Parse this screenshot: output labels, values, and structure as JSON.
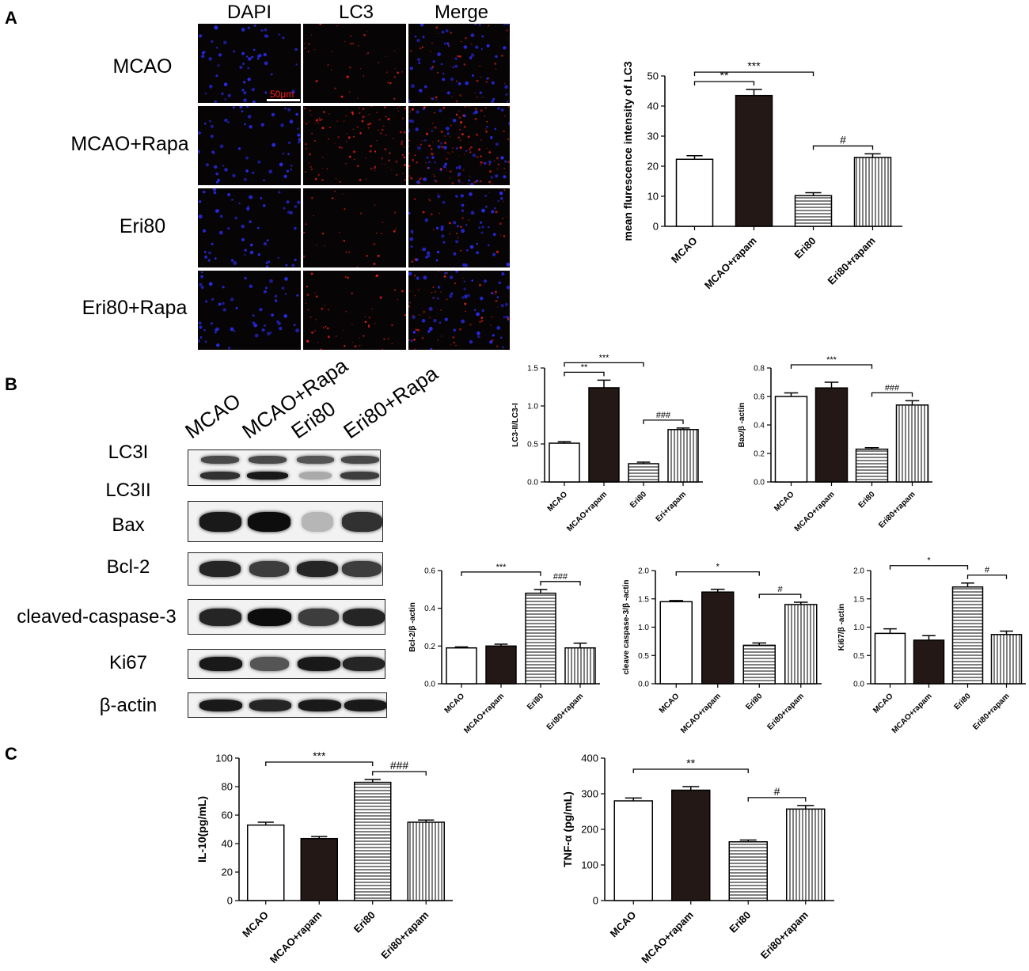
{
  "panels": {
    "a": "A",
    "b": "B",
    "c": "C"
  },
  "if_grid": {
    "columns": [
      "DAPI",
      "LC3",
      "Merge"
    ],
    "rows": [
      "MCAO",
      "MCAO+Rapa",
      "Eri80",
      "Eri80+Rapa"
    ],
    "scale_bar": "50μm",
    "intensity": {
      "dapi": [
        1.0,
        1.0,
        1.0,
        1.0
      ],
      "lc3": [
        0.35,
        1.0,
        0.25,
        0.45
      ]
    }
  },
  "western_blot": {
    "lanes": [
      "MCAO",
      "MCAO+Rapa",
      "Eri80",
      "Eri80+Rapa"
    ],
    "bands": [
      {
        "label": "LC3I",
        "intensity": [
          0.75,
          0.75,
          0.7,
          0.75
        ]
      },
      {
        "label": "LC3II",
        "intensity": [
          0.85,
          0.95,
          0.35,
          0.8
        ]
      },
      {
        "label": "Bax",
        "intensity": [
          0.95,
          1.0,
          0.3,
          0.85
        ]
      },
      {
        "label": "Bcl-2",
        "intensity": [
          0.9,
          0.8,
          0.9,
          0.8
        ]
      },
      {
        "label": "cleaved-caspase-3",
        "intensity": [
          0.9,
          1.0,
          0.8,
          0.9
        ]
      },
      {
        "label": "Ki67",
        "intensity": [
          0.95,
          0.7,
          0.95,
          0.9
        ]
      },
      {
        "label": "β-actin",
        "intensity": [
          0.95,
          0.9,
          0.95,
          0.95
        ]
      }
    ]
  },
  "colors": {
    "bar_fill_dark": "#231815",
    "bar_stroke": "#000000",
    "lc3_red": "#e8201c",
    "dapi_blue": "#2a2ae8"
  },
  "chart_data": [
    {
      "id": "lc3-intensity",
      "type": "bar",
      "categories": [
        "MCAO",
        "MCAO+rapam",
        "Eri80",
        "Eri80+rapam"
      ],
      "values": [
        22.3,
        43.5,
        10.2,
        22.9
      ],
      "errors": [
        1.2,
        2.0,
        1.0,
        1.2
      ],
      "patterns": [
        "open",
        "solid",
        "hlines",
        "vlines"
      ],
      "ylabel": "mean flurescence intensity of LC3",
      "ylim": [
        0,
        50
      ],
      "yticks": [
        0,
        10,
        20,
        30,
        40,
        50
      ],
      "significance": [
        {
          "from": 0,
          "to": 1,
          "label": "**"
        },
        {
          "from": 0,
          "to": 2,
          "label": "***"
        },
        {
          "from": 2,
          "to": 3,
          "label": "#"
        }
      ]
    },
    {
      "id": "lc3-ratio",
      "type": "bar",
      "categories": [
        "MCAO",
        "MCAO+rapam",
        "Eri80",
        "Eri+rapam"
      ],
      "values": [
        0.51,
        1.24,
        0.24,
        0.69
      ],
      "errors": [
        0.02,
        0.1,
        0.02,
        0.02
      ],
      "patterns": [
        "open",
        "solid",
        "hlines",
        "vlines"
      ],
      "ylabel": "LC3-II/LC3-I",
      "ylim": [
        0,
        1.5
      ],
      "yticks": [
        "0.0",
        "0.5",
        "1.0",
        "1.5"
      ],
      "significance": [
        {
          "from": 0,
          "to": 1,
          "label": "**"
        },
        {
          "from": 0,
          "to": 2,
          "label": "***"
        },
        {
          "from": 2,
          "to": 3,
          "label": "###"
        }
      ]
    },
    {
      "id": "bax",
      "type": "bar",
      "categories": [
        "MCAO",
        "MCAO+rapam",
        "Eri80",
        "Eri80+rapam"
      ],
      "values": [
        0.6,
        0.66,
        0.23,
        0.54
      ],
      "errors": [
        0.025,
        0.04,
        0.01,
        0.03
      ],
      "patterns": [
        "open",
        "solid",
        "hlines",
        "vlines"
      ],
      "ylabel": "Bax/β -actin",
      "ylim": [
        0,
        0.8
      ],
      "yticks": [
        "0.0",
        "0.2",
        "0.4",
        "0.6",
        "0.8"
      ],
      "significance": [
        {
          "from": 0,
          "to": 2,
          "label": "***"
        },
        {
          "from": 2,
          "to": 3,
          "label": "###"
        }
      ]
    },
    {
      "id": "bcl2",
      "type": "bar",
      "categories": [
        "MCAO",
        "MCAO+rapam",
        "Eri80",
        "Eri80+rapam"
      ],
      "values": [
        0.19,
        0.2,
        0.48,
        0.19
      ],
      "errors": [
        0.005,
        0.01,
        0.02,
        0.025
      ],
      "patterns": [
        "open",
        "solid",
        "hlines",
        "vlines"
      ],
      "ylabel": "Bcl-2/β -actin",
      "ylim": [
        0,
        0.6
      ],
      "yticks": [
        "0.0",
        "0.2",
        "0.4",
        "0.6"
      ],
      "significance": [
        {
          "from": 0,
          "to": 2,
          "label": "***"
        },
        {
          "from": 2,
          "to": 3,
          "label": "###"
        }
      ]
    },
    {
      "id": "caspase3",
      "type": "bar",
      "categories": [
        "MCAO",
        "MCAO+rapam",
        "Eri80",
        "Eri80+rapam"
      ],
      "values": [
        1.45,
        1.62,
        0.68,
        1.4
      ],
      "errors": [
        0.02,
        0.05,
        0.04,
        0.04
      ],
      "patterns": [
        "open",
        "solid",
        "hlines",
        "vlines"
      ],
      "ylabel": "cleave caspase-3/β -actin",
      "ylim": [
        0,
        2.0
      ],
      "yticks": [
        "0.0",
        "0.5",
        "1.0",
        "1.5",
        "2.0"
      ],
      "significance": [
        {
          "from": 0,
          "to": 2,
          "label": "*"
        },
        {
          "from": 2,
          "to": 3,
          "label": "#"
        }
      ]
    },
    {
      "id": "ki67",
      "type": "bar",
      "categories": [
        "MCAO",
        "MCAO+rapam",
        "Eri80",
        "Eri80+rapam"
      ],
      "values": [
        0.89,
        0.77,
        1.71,
        0.87
      ],
      "errors": [
        0.08,
        0.08,
        0.07,
        0.06
      ],
      "patterns": [
        "open",
        "solid",
        "hlines",
        "vlines"
      ],
      "ylabel": "Ki67/β -actin",
      "ylim": [
        0,
        2.0
      ],
      "yticks": [
        "0.0",
        "0.5",
        "1.0",
        "1.5",
        "2.0"
      ],
      "significance": [
        {
          "from": 0,
          "to": 2,
          "label": "*"
        },
        {
          "from": 2,
          "to": 3,
          "label": "#"
        }
      ]
    },
    {
      "id": "il10",
      "type": "bar",
      "categories": [
        "MCAO",
        "MCAO+rapam",
        "Eri80",
        "Eri80+rapam"
      ],
      "values": [
        53,
        43.5,
        83,
        55
      ],
      "errors": [
        2,
        1.5,
        2,
        1.5
      ],
      "patterns": [
        "open",
        "solid",
        "hlines",
        "vlines"
      ],
      "ylabel": "IL-10(pg/mL)",
      "ylim": [
        0,
        100
      ],
      "yticks": [
        0,
        20,
        40,
        60,
        80,
        100
      ],
      "significance": [
        {
          "from": 0,
          "to": 2,
          "label": "***"
        },
        {
          "from": 2,
          "to": 3,
          "label": "###"
        }
      ]
    },
    {
      "id": "tnf",
      "type": "bar",
      "categories": [
        "MCAO",
        "MCAO+rapam",
        "Eri80",
        "Eri80+rapam"
      ],
      "values": [
        280,
        310,
        165,
        257
      ],
      "errors": [
        8,
        10,
        5,
        10
      ],
      "patterns": [
        "open",
        "solid",
        "hlines",
        "vlines"
      ],
      "ylabel": "TNF-α (pg/mL)",
      "ylim": [
        0,
        400
      ],
      "yticks": [
        0,
        100,
        200,
        300,
        400
      ],
      "significance": [
        {
          "from": 0,
          "to": 2,
          "label": "**"
        },
        {
          "from": 2,
          "to": 3,
          "label": "#"
        }
      ]
    }
  ]
}
